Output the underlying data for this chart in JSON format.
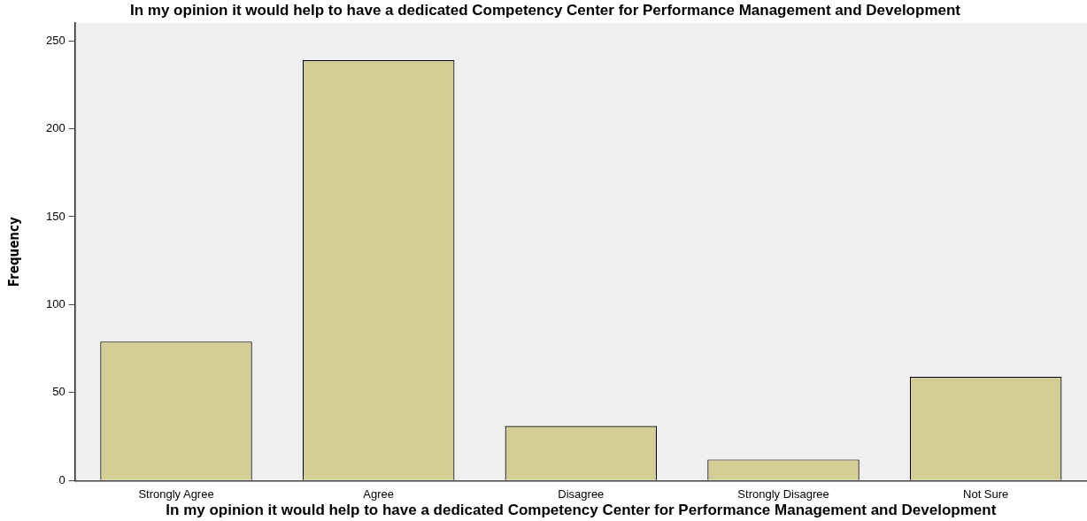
{
  "chart_data": {
    "type": "bar",
    "title": "In my opinion it would help to have a dedicated Competency Center for Performance Management and Development",
    "xlabel": "In my opinion it would help to have a dedicated Competency Center for Performance Management and Development",
    "ylabel": "Frequency",
    "categories": [
      "Strongly Agree",
      "Agree",
      "Disagree",
      "Strongly Disagree",
      "Not Sure"
    ],
    "values": [
      79,
      239,
      31,
      12,
      59
    ],
    "color": "#d3cd96",
    "ylim": [
      0,
      260
    ],
    "yticks": [
      0,
      50,
      100,
      150,
      200,
      250
    ],
    "grid": false,
    "legend": false
  }
}
